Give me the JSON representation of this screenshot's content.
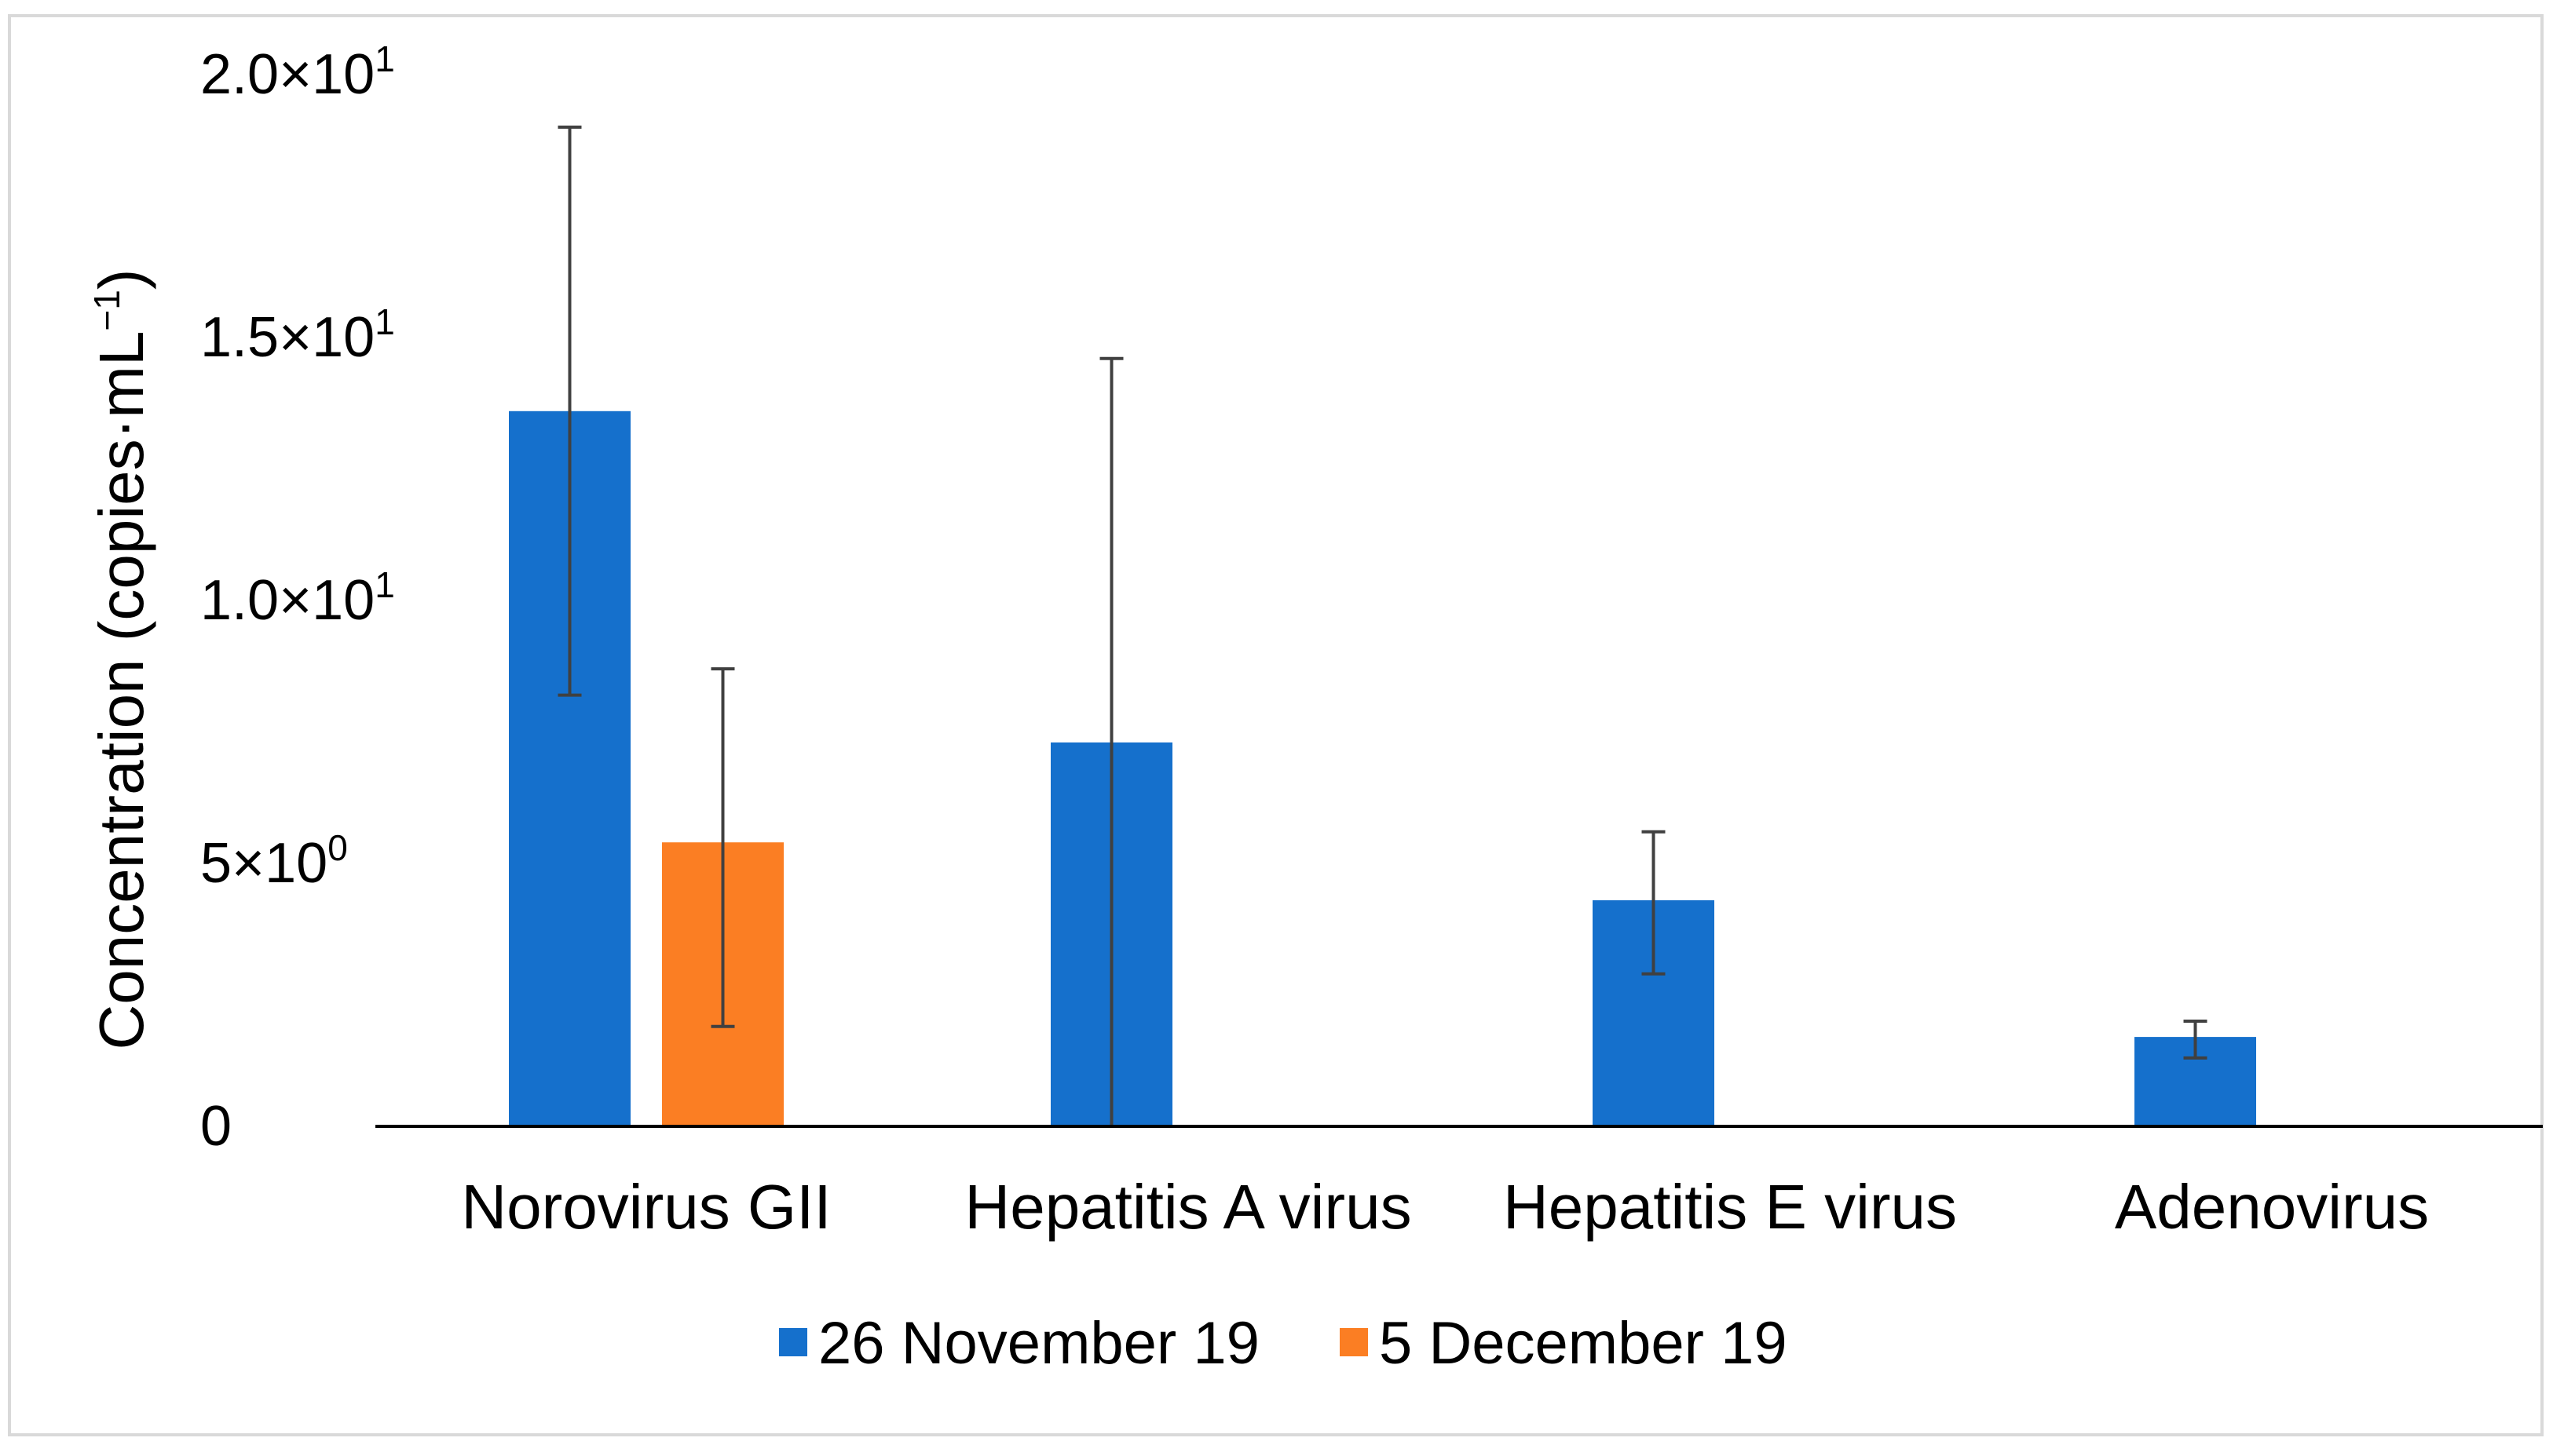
{
  "chart_data": {
    "type": "bar",
    "title": "",
    "xlabel": "",
    "ylabel": "Concentration (copies·mL",
    "ylabel_superscript": "−1",
    "ylabel_suffix": ")",
    "ylim": [
      0,
      20
    ],
    "y_ticks": [
      {
        "value": 0,
        "label": "0",
        "sup": ""
      },
      {
        "value": 5,
        "label": "5×10",
        "sup": "0"
      },
      {
        "value": 10,
        "label": "1.0×10",
        "sup": "1"
      },
      {
        "value": 15,
        "label": "1.5×10",
        "sup": "1"
      },
      {
        "value": 20,
        "label": "2.0×10",
        "sup": "1"
      }
    ],
    "categories": [
      "Norovirus GII",
      "Hepatitis A virus",
      "Hepatitis E virus",
      "Adenovirus"
    ],
    "series": [
      {
        "name": "26 November 19",
        "color": "#1570cc",
        "values": [
          13.6,
          7.3,
          4.3,
          1.7
        ],
        "error_low": [
          8.2,
          0.0,
          2.9,
          1.3
        ],
        "error_high": [
          19.0,
          14.6,
          5.6,
          2.0
        ]
      },
      {
        "name": "5 December 19",
        "color": "#fb7e23",
        "values": [
          5.4,
          null,
          null,
          null
        ],
        "error_low": [
          1.9,
          null,
          null,
          null
        ],
        "error_high": [
          8.7,
          null,
          null,
          null
        ]
      }
    ],
    "grid": false,
    "legend_position": "bottom"
  }
}
